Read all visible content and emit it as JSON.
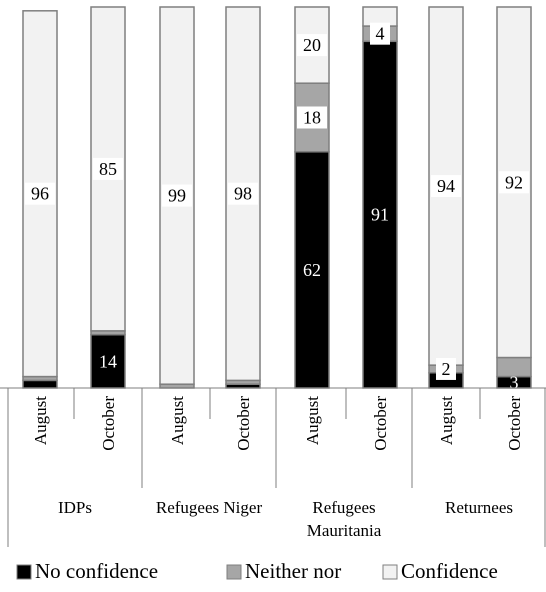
{
  "chart_data": {
    "type": "bar",
    "stacked": true,
    "groups": [
      "IDPs",
      "Refugees Niger",
      "Refugees Mauritania",
      "Returnees"
    ],
    "group_label_lines": [
      [
        "IDPs"
      ],
      [
        "Refugees Niger"
      ],
      [
        "Refugees",
        "Mauritania"
      ],
      [
        "Returnees"
      ]
    ],
    "categories": [
      "August",
      "October",
      "August",
      "October",
      "August",
      "October",
      "August",
      "October"
    ],
    "category_group": [
      0,
      0,
      1,
      1,
      2,
      2,
      3,
      3
    ],
    "series": [
      {
        "name": "No confidence",
        "color": "#000000",
        "values": [
          2,
          14,
          0,
          1,
          62,
          91,
          4,
          3
        ],
        "labels": [
          "",
          "14",
          "",
          "",
          "62",
          "91",
          "",
          "3"
        ]
      },
      {
        "name": "Neither nor",
        "color": "#a6a6a6",
        "values": [
          1,
          1,
          1,
          1,
          18,
          4,
          2,
          5
        ],
        "labels": [
          "",
          "",
          "",
          "",
          "18",
          "4",
          "2",
          ""
        ]
      },
      {
        "name": "Confidence",
        "color": "#f2f2f2",
        "values": [
          96,
          85,
          99,
          98,
          20,
          5,
          94,
          92
        ],
        "labels": [
          "96",
          "85",
          "99",
          "98",
          "20",
          "",
          "94",
          "92"
        ]
      }
    ],
    "ylim": [
      0,
      100
    ],
    "grid": false,
    "legend_position": "bottom"
  }
}
